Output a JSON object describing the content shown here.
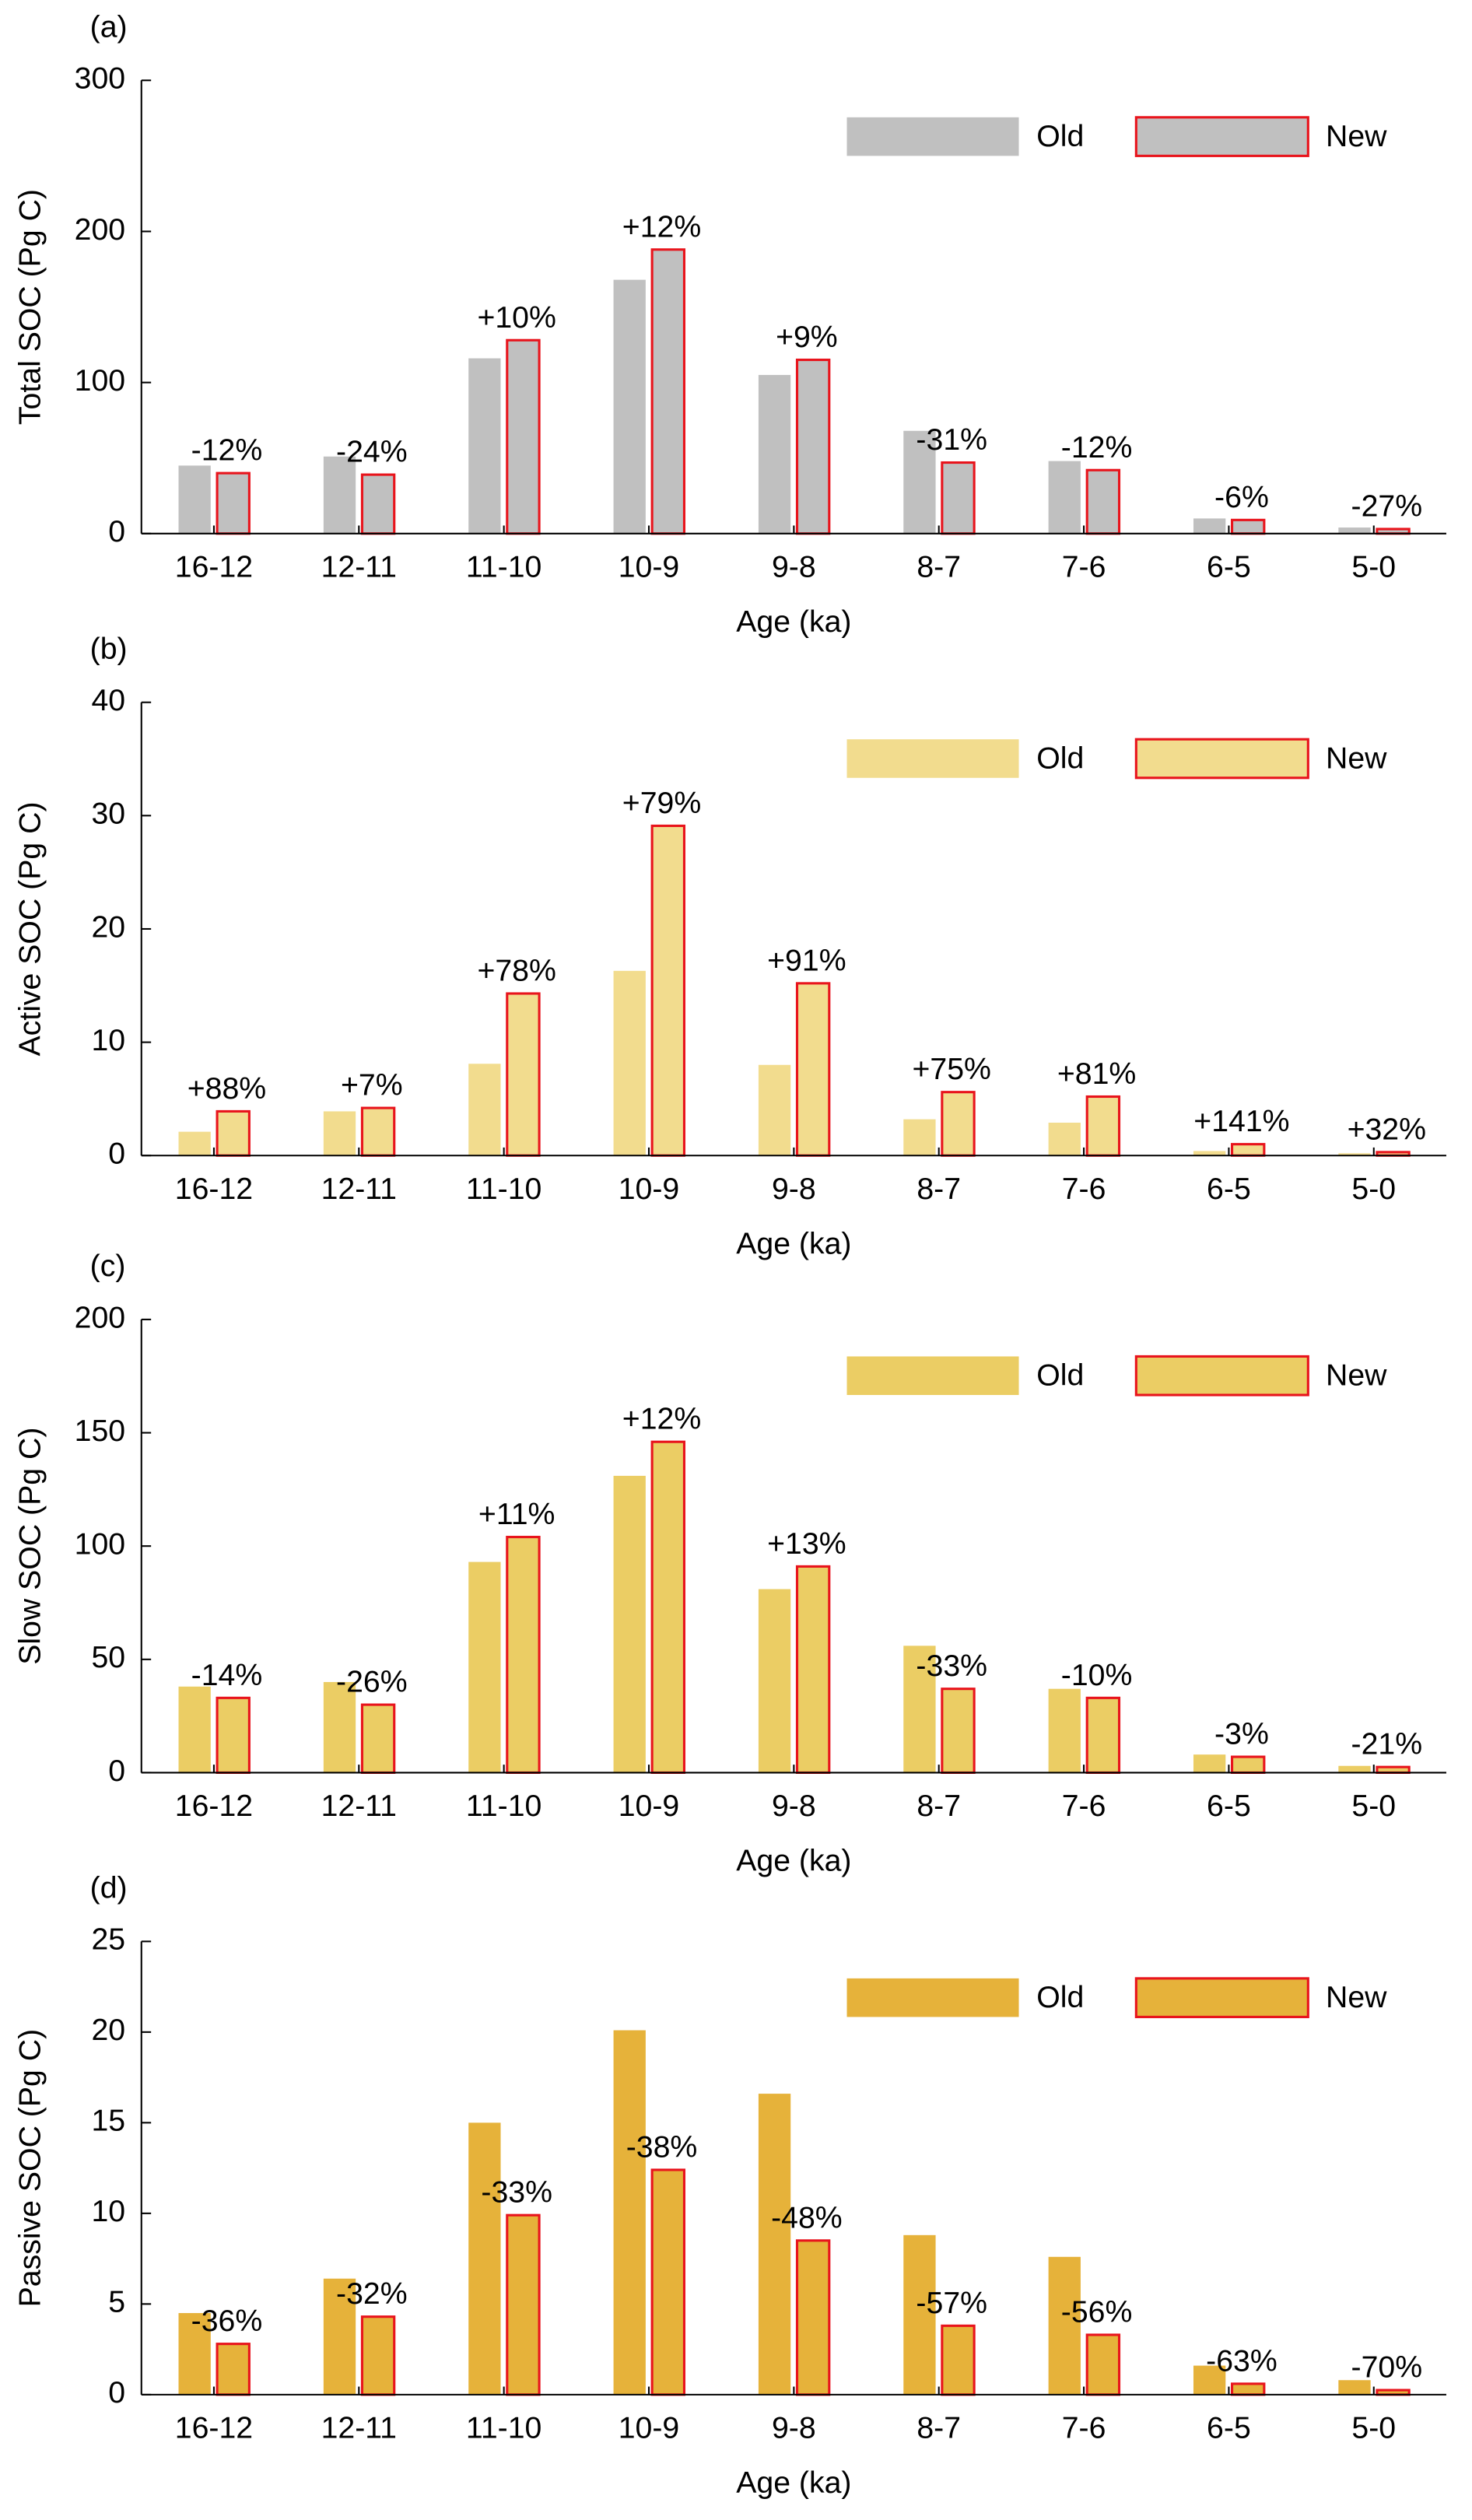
{
  "chart_data": [
    {
      "type": "bar",
      "panel_label": "(a)",
      "ylabel": "Total SOC (Pg C)",
      "xlabel": "Age (ka)",
      "categories": [
        "16-12",
        "12-11",
        "11-10",
        "10-9",
        "9-8",
        "8-7",
        "7-6",
        "6-5",
        "5-0"
      ],
      "series": [
        {
          "name": "Old",
          "color": "#c0c0c0",
          "values": [
            45,
            51,
            116,
            168,
            105,
            68,
            48,
            10,
            4
          ]
        },
        {
          "name": "New",
          "color": "#c0c0c0",
          "edgecolor": "#e8141c",
          "values": [
            40,
            39,
            128,
            188,
            115,
            47,
            42,
            9,
            3
          ]
        }
      ],
      "annotations": [
        "-12%",
        "-24%",
        "+10%",
        "+12%",
        "+9%",
        "-31%",
        "-12%",
        "-6%",
        "-27%"
      ],
      "ylim": [
        0,
        300
      ],
      "yticks": [
        0,
        100,
        200,
        300
      ]
    },
    {
      "type": "bar",
      "panel_label": "(b)",
      "ylabel": "Active SOC (Pg C)",
      "xlabel": "Age (ka)",
      "categories": [
        "16-12",
        "12-11",
        "11-10",
        "10-9",
        "9-8",
        "8-7",
        "7-6",
        "6-5",
        "5-0"
      ],
      "series": [
        {
          "name": "Old",
          "color": "#f2dc8e",
          "values": [
            2.1,
            3.9,
            8.1,
            16.3,
            8.0,
            3.2,
            2.9,
            0.4,
            0.2
          ]
        },
        {
          "name": "New",
          "color": "#f2dc8e",
          "edgecolor": "#e8141c",
          "values": [
            3.9,
            4.2,
            14.3,
            29.1,
            15.2,
            5.6,
            5.2,
            1.0,
            0.3
          ]
        }
      ],
      "annotations": [
        "+88%",
        "+7%",
        "+78%",
        "+79%",
        "+91%",
        "+75%",
        "+81%",
        "+141%",
        "+32%"
      ],
      "ylim": [
        0,
        40
      ],
      "yticks": [
        0,
        10,
        20,
        30,
        40
      ]
    },
    {
      "type": "bar",
      "panel_label": "(c)",
      "ylabel": "Slow SOC (Pg C)",
      "xlabel": "Age (ka)",
      "categories": [
        "16-12",
        "12-11",
        "11-10",
        "10-9",
        "9-8",
        "8-7",
        "7-6",
        "6-5",
        "5-0"
      ],
      "series": [
        {
          "name": "Old",
          "color": "#ebcd64",
          "values": [
            38,
            40,
            93,
            131,
            81,
            56,
            37,
            8,
            3
          ]
        },
        {
          "name": "New",
          "color": "#ebcd64",
          "edgecolor": "#e8141c",
          "values": [
            33,
            30,
            104,
            146,
            91,
            37,
            33,
            7,
            2.5
          ]
        }
      ],
      "annotations": [
        "-14%",
        "-26%",
        "+11%",
        "+12%",
        "+13%",
        "-33%",
        "-10%",
        "-3%",
        "-21%"
      ],
      "ylim": [
        0,
        200
      ],
      "yticks": [
        0,
        50,
        100,
        150,
        200
      ]
    },
    {
      "type": "bar",
      "panel_label": "(d)",
      "ylabel": "Passive SOC (Pg C)",
      "xlabel": "Age (ka)",
      "categories": [
        "16-12",
        "12-11",
        "11-10",
        "10-9",
        "9-8",
        "8-7",
        "7-6",
        "6-5",
        "5-0"
      ],
      "series": [
        {
          "name": "Old",
          "color": "#e6b23a",
          "values": [
            4.5,
            6.4,
            15.0,
            20.1,
            16.6,
            8.8,
            7.6,
            1.6,
            0.8
          ]
        },
        {
          "name": "New",
          "color": "#e6b23a",
          "edgecolor": "#e8141c",
          "values": [
            2.8,
            4.3,
            9.9,
            12.4,
            8.5,
            3.8,
            3.3,
            0.6,
            0.25
          ]
        }
      ],
      "annotations": [
        "-36%",
        "-32%",
        "-33%",
        "-38%",
        "-48%",
        "-57%",
        "-56%",
        "-63%",
        "-70%"
      ],
      "ylim": [
        0,
        25
      ],
      "yticks": [
        0,
        5,
        10,
        15,
        20,
        25
      ]
    }
  ]
}
